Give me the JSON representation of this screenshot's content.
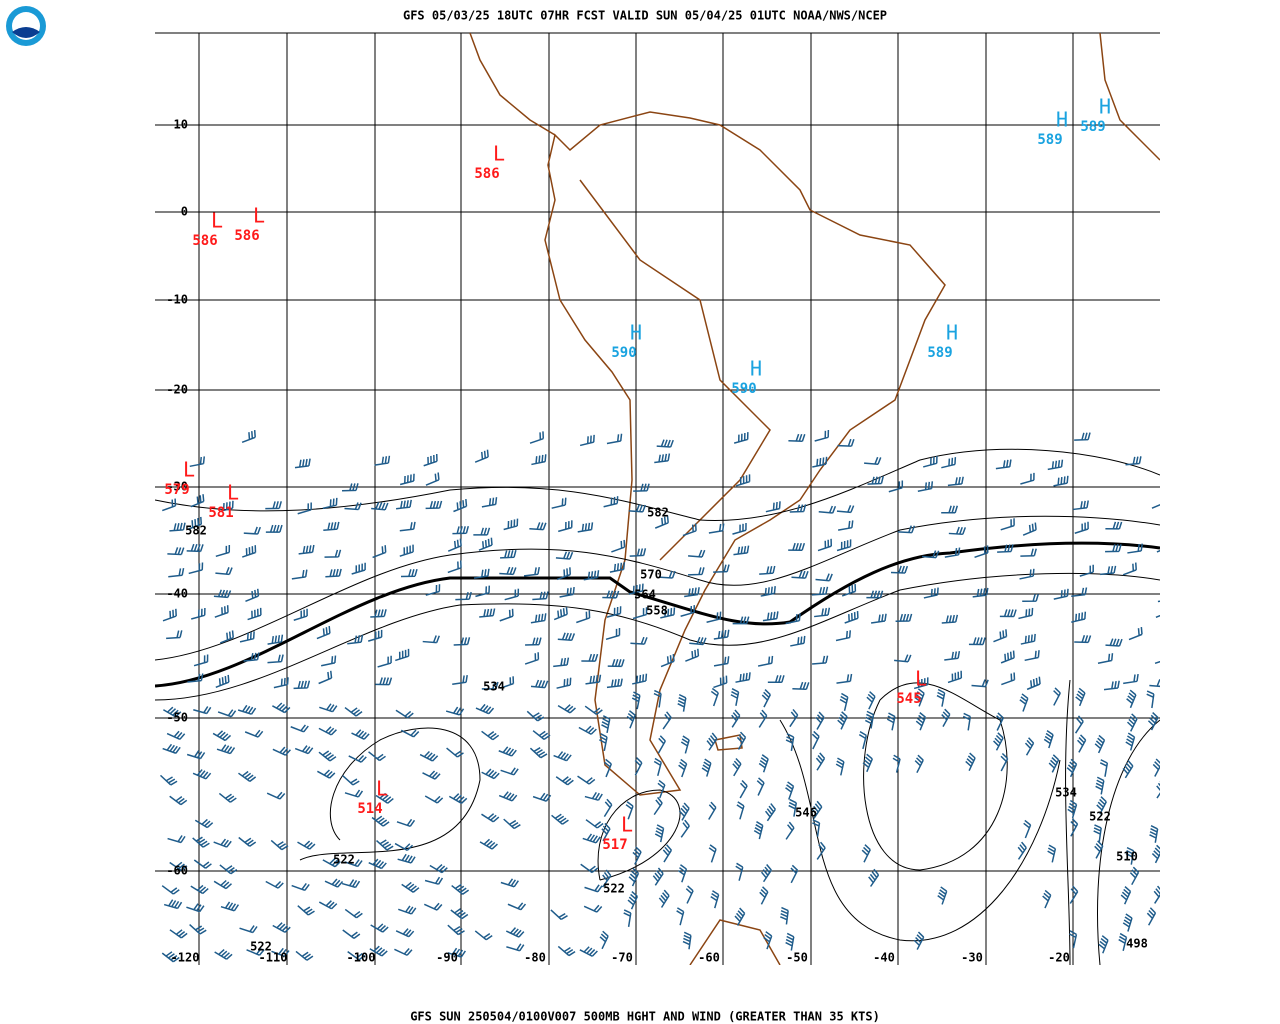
{
  "header": {
    "title": "GFS 05/03/25 18UTC 07HR FCST VALID SUN 05/04/25 01UTC NOAA/NWS/NCEP"
  },
  "footer": {
    "caption": "GFS SUN 250504/0100V007 500MB HGHT AND WIND (GREATER THAN 35 KTS)"
  },
  "lat_labels": [
    "10",
    "0",
    "-10",
    "-20",
    "-30",
    "-40",
    "-50",
    "-60"
  ],
  "lon_labels": [
    "-120",
    "-110",
    "-100",
    "-90",
    "-80",
    "-70",
    "-60",
    "-50",
    "-40",
    "-30",
    "-20"
  ],
  "centers": [
    {
      "letter": "L",
      "value": "586"
    },
    {
      "letter": "L",
      "value": "586"
    },
    {
      "letter": "L",
      "value": "586"
    },
    {
      "letter": "H",
      "value": "589"
    },
    {
      "letter": "H",
      "value": "589"
    },
    {
      "letter": "H",
      "value": "590"
    },
    {
      "letter": "H",
      "value": "590"
    },
    {
      "letter": "H",
      "value": "589"
    },
    {
      "letter": "L",
      "value": "579"
    },
    {
      "letter": "L",
      "value": "581"
    },
    {
      "letter": "L",
      "value": "545"
    },
    {
      "letter": "L",
      "value": "514"
    },
    {
      "letter": "L",
      "value": "517"
    }
  ],
  "contour_labels": [
    "582",
    "582",
    "570",
    "564",
    "558",
    "534",
    "546",
    "534",
    "522",
    "510",
    "522",
    "522",
    "522",
    "498"
  ]
}
